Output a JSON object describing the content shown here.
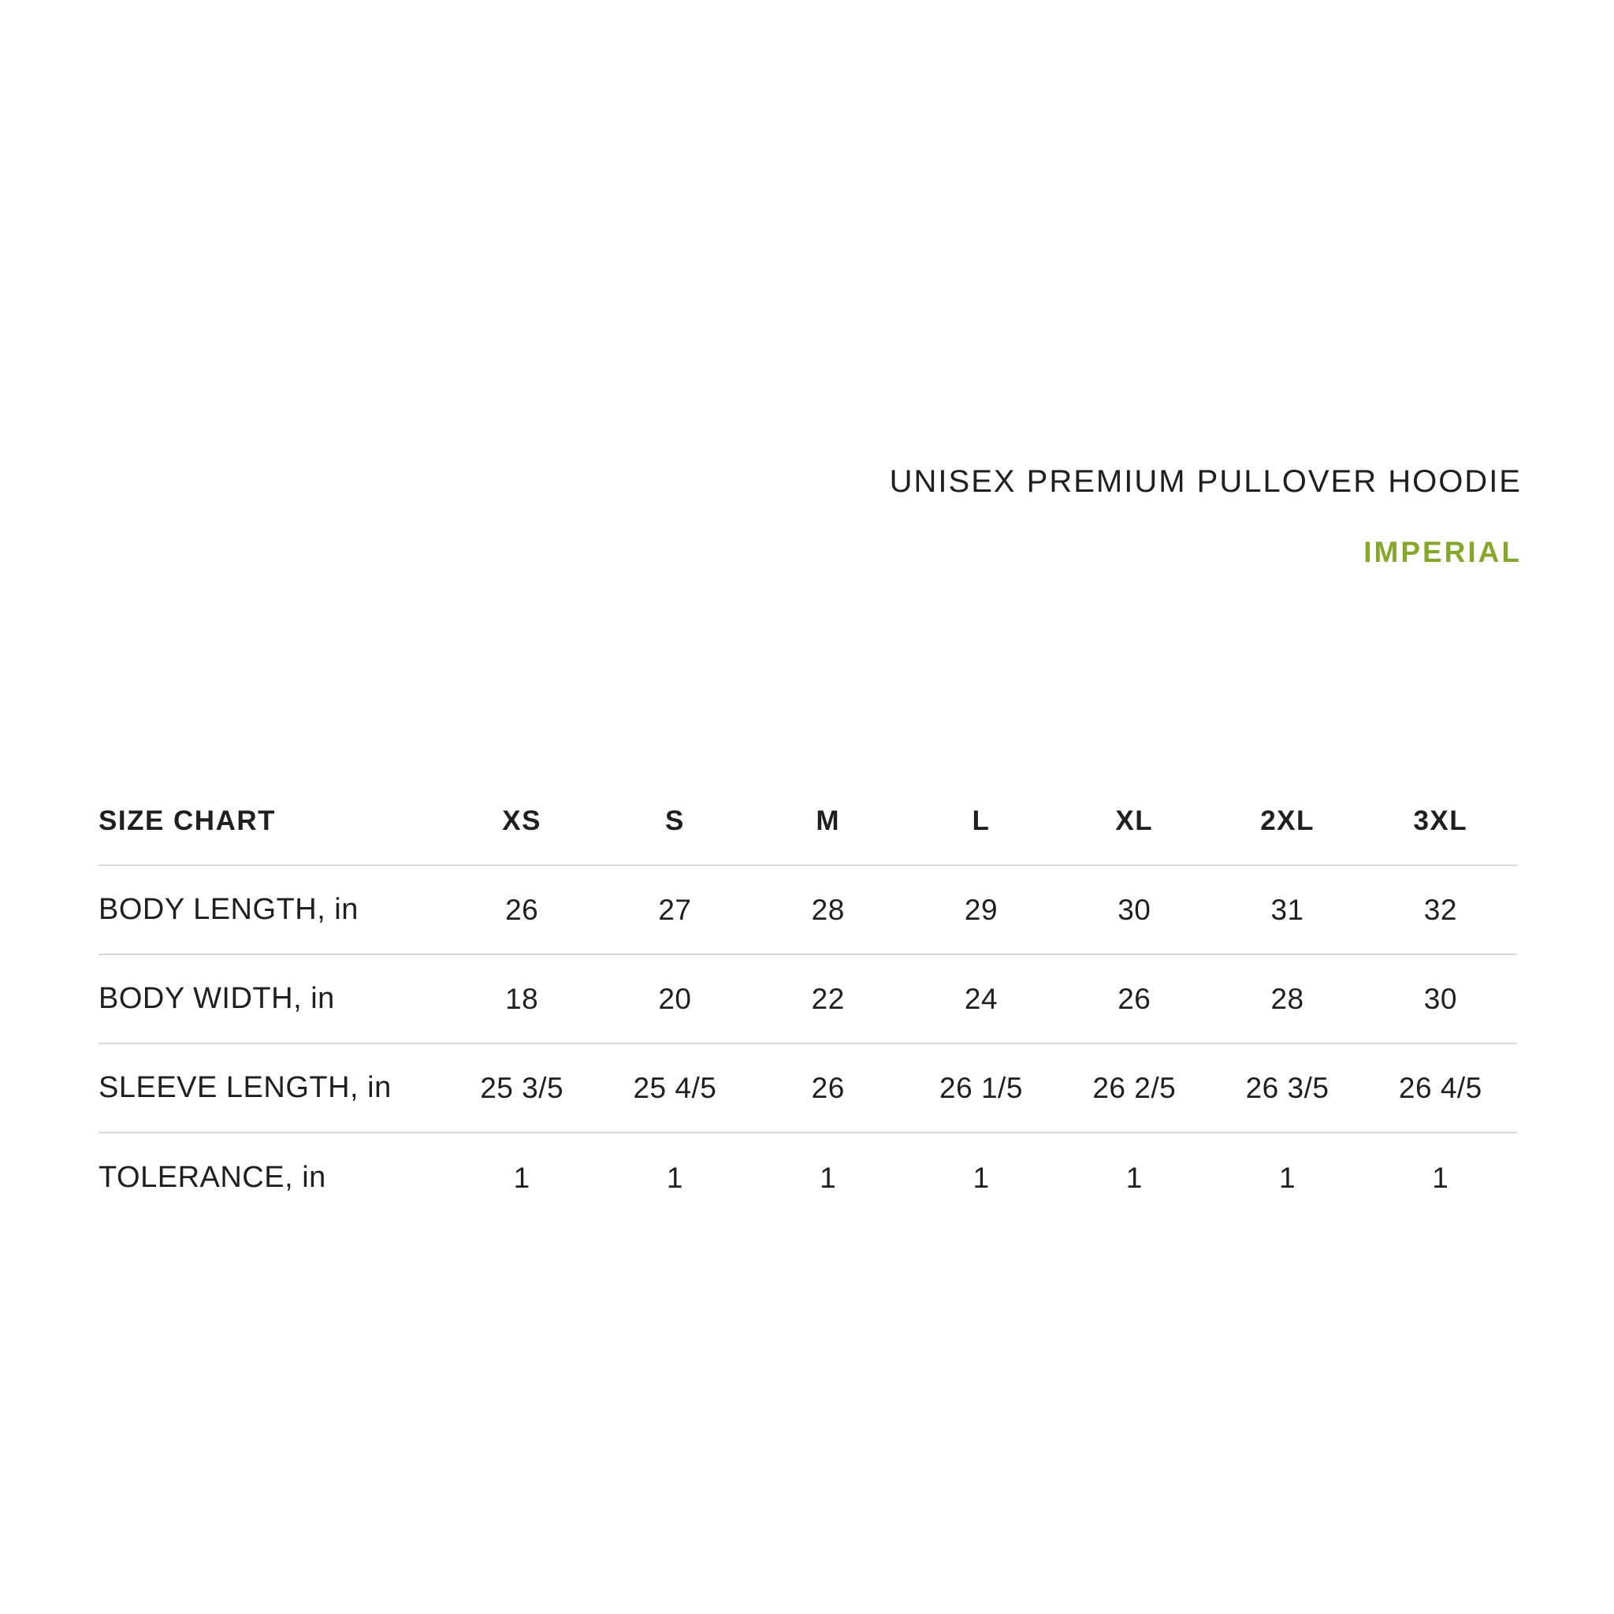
{
  "header": {
    "title": "UNISEX PREMIUM PULLOVER HOODIE",
    "units_label": "IMPERIAL",
    "accent_color": "#86a82a"
  },
  "chart_data": {
    "type": "table",
    "title": "UNISEX PREMIUM PULLOVER HOODIE",
    "subtitle": "IMPERIAL",
    "corner_label": "SIZE CHART",
    "columns": [
      "XS",
      "S",
      "M",
      "L",
      "XL",
      "2XL",
      "3XL"
    ],
    "rows": [
      {
        "label": "BODY LENGTH, in",
        "values": [
          "26",
          "27",
          "28",
          "29",
          "30",
          "31",
          "32"
        ]
      },
      {
        "label": "BODY WIDTH, in",
        "values": [
          "18",
          "20",
          "22",
          "24",
          "26",
          "28",
          "30"
        ]
      },
      {
        "label": "SLEEVE LENGTH, in",
        "values": [
          "25 3/5",
          "25 4/5",
          "26",
          "26 1/5",
          "26 2/5",
          "26 3/5",
          "26 4/5"
        ]
      },
      {
        "label": "TOLERANCE, in",
        "values": [
          "1",
          "1",
          "1",
          "1",
          "1",
          "1",
          "1"
        ]
      }
    ],
    "layout_hints": {
      "divider_color": "#d9d9d9",
      "text_color": "#1f1f1f",
      "header_bold": true,
      "value_alignment": "center",
      "label_alignment": "left"
    }
  }
}
